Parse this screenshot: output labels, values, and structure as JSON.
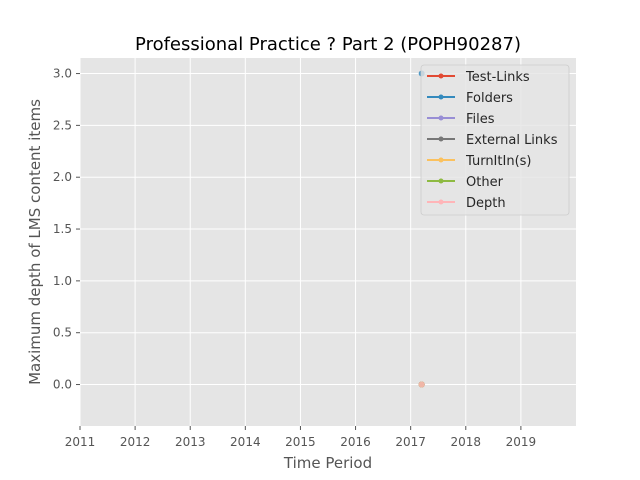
{
  "chart_data": {
    "type": "line",
    "title": "Professional Practice ? Part 2 (POPH90287)",
    "xlabel": "Time Period",
    "ylabel": "Maximum depth of LMS content items",
    "xlim": [
      2011,
      2020
    ],
    "ylim": [
      -0.4,
      3.15
    ],
    "x_ticks": [
      2011,
      2012,
      2013,
      2014,
      2015,
      2016,
      2017,
      2018,
      2019
    ],
    "y_ticks": [
      0.0,
      0.5,
      1.0,
      1.5,
      2.0,
      2.5,
      3.0
    ],
    "x_tick_labels": [
      "2011",
      "2012",
      "2013",
      "2014",
      "2015",
      "2016",
      "2017",
      "2018",
      "2019"
    ],
    "y_tick_labels": [
      "0.0",
      "0.5",
      "1.0",
      "1.5",
      "2.0",
      "2.5",
      "3.0"
    ],
    "grid": true,
    "legend_position": "top-right",
    "series": [
      {
        "name": "Test-Links",
        "color": "#E24A33",
        "points": [
          [
            2017.2,
            0
          ]
        ]
      },
      {
        "name": "Folders",
        "color": "#348ABD",
        "points": [
          [
            2017.2,
            3
          ]
        ]
      },
      {
        "name": "Files",
        "color": "#988ED5",
        "points": [
          [
            2017.2,
            0
          ]
        ]
      },
      {
        "name": "External Links",
        "color": "#777777",
        "points": [
          [
            2017.2,
            0
          ]
        ]
      },
      {
        "name": "TurnItIn(s)",
        "color": "#FBC15E",
        "points": [
          [
            2017.2,
            0
          ]
        ]
      },
      {
        "name": "Other",
        "color": "#8EBA42",
        "points": [
          [
            2017.2,
            0
          ]
        ]
      },
      {
        "name": "Depth",
        "color": "#FFB5B8",
        "points": [
          [
            2017.2,
            0
          ]
        ]
      }
    ]
  }
}
